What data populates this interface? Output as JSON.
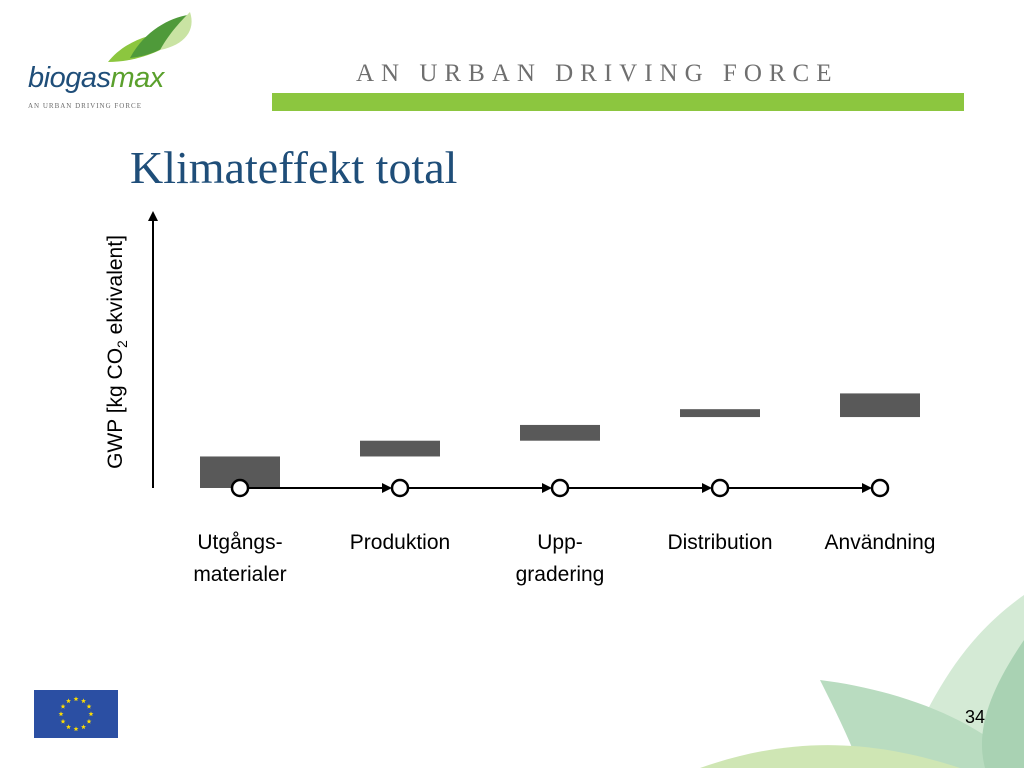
{
  "header": {
    "logo_text_main": "biogas",
    "logo_text_accent": "max",
    "logo_subtitle": "AN URBAN DRIVING FORCE",
    "tagline": "AN URBAN DRIVING FORCE"
  },
  "slide": {
    "title": "Klimateffekt total",
    "page_number": "34"
  },
  "colors": {
    "title": "#1f4e79",
    "bar": "#595959",
    "accent_green": "#8cc63f"
  },
  "chart_data": {
    "type": "bar",
    "subtype": "waterfall",
    "ylabel_prefix": "GWP [kg CO",
    "ylabel_sub": "2",
    "ylabel_suffix": " ekvivalent]",
    "categories": [
      {
        "line1": "Utgångs-",
        "line2": "materialer"
      },
      {
        "line1": "Produktion",
        "line2": ""
      },
      {
        "line1": "Upp-",
        "line2": "gradering"
      },
      {
        "line1": "Distribution",
        "line2": ""
      },
      {
        "line1": "Användning",
        "line2": ""
      }
    ],
    "bars": [
      {
        "start": 0,
        "end": 2
      },
      {
        "start": 2,
        "end": 3
      },
      {
        "start": 3,
        "end": 4
      },
      {
        "start": 4.5,
        "end": 5
      },
      {
        "start": 4.5,
        "end": 6
      }
    ],
    "ylim": [
      0,
      17
    ],
    "grid": false,
    "y_ticks_shown": false
  }
}
